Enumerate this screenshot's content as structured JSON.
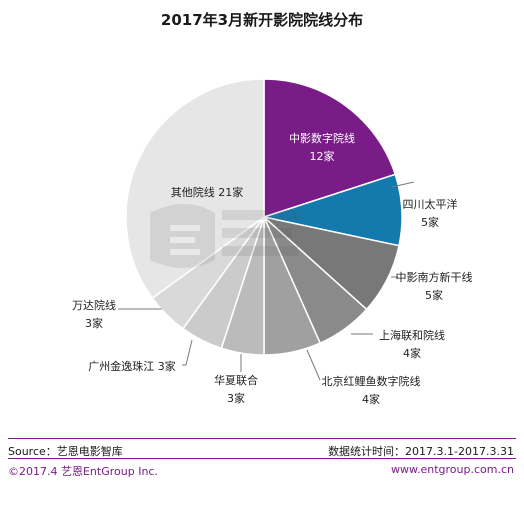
{
  "colors": {
    "accent": "#7a1c87",
    "slices": [
      "#7a1c87",
      "#1479ac",
      "#787878",
      "#8a8a8a",
      "#a0a0a0",
      "#bbbbbb",
      "#cbcbcb",
      "#d9d9d9",
      "#e6e6e6",
      "#ececec"
    ]
  },
  "chart_data": {
    "type": "pie",
    "title": "2017年3月新开影院院线分布",
    "unit": "家",
    "start_angle": "12 o'clock",
    "direction": "clockwise",
    "slices": [
      {
        "label": "中影数字院线",
        "value": 12,
        "value_text": "12家"
      },
      {
        "label": "四川太平洋",
        "value": 5,
        "value_text": "5家"
      },
      {
        "label": "中影南方新干线",
        "value": 5,
        "value_text": "5家"
      },
      {
        "label": "上海联和院线",
        "value": 4,
        "value_text": "4家"
      },
      {
        "label": "北京红鲤鱼数字院线",
        "value": 4,
        "value_text": "4家"
      },
      {
        "label": "华夏联合",
        "value": 3,
        "value_text": "3家"
      },
      {
        "label": "广州金逸珠江",
        "value": 3,
        "value_text": "3家"
      },
      {
        "label": "万达院线",
        "value": 3,
        "value_text": "3家"
      },
      {
        "label": "其他院线",
        "value": 21,
        "value_text": "21家"
      }
    ]
  },
  "footer": {
    "source": "Source：艺恩电影智库",
    "period": "数据统计时间：2017.3.1-2017.3.31",
    "copyright": "©2017.4 艺恩EntGroup Inc.",
    "website": "www.entgroup.com.cn"
  }
}
